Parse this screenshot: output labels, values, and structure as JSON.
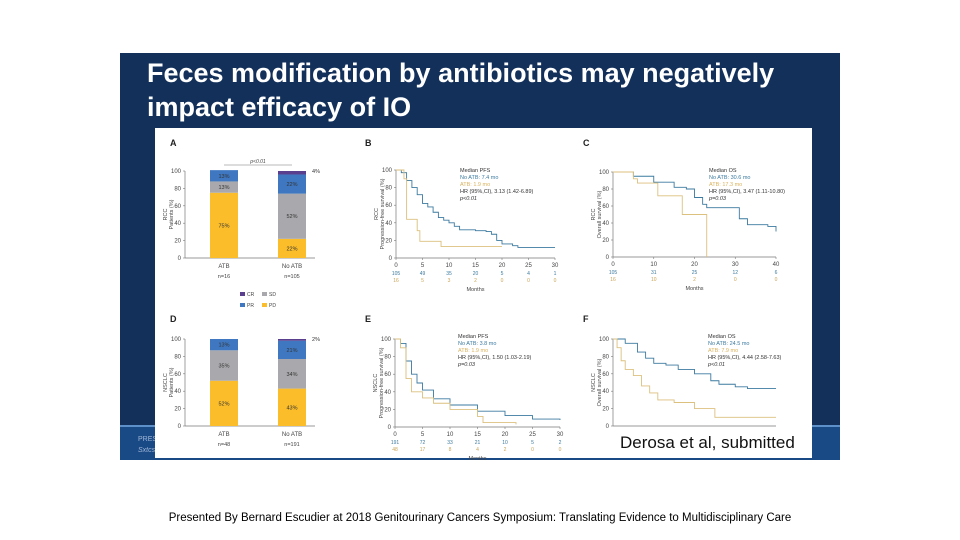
{
  "slide": {
    "title": "Feces modification by antibiotics may negatively impact efficacy of IO",
    "partial_footer_lines": [
      "PRESE",
      "Sxtcs"
    ],
    "citation": "Derosa et al, submitted",
    "caption": "Presented By Bernard Escudier at 2018 Genitourinary Cancers Symposium: Translating Evidence to Multidisciplinary Care"
  },
  "colors": {
    "slide_bg": "#13305a",
    "band": "#1a4a86",
    "CR": "#5b3f8f",
    "PR": "#3f78c1",
    "SD": "#a9a9ad",
    "PD": "#fbbd2a",
    "no_atb": "#3c7aa0",
    "atb": "#dcc07e"
  },
  "legend_A": [
    "CR",
    "SD",
    "PR",
    "PD"
  ],
  "chart_data": [
    {
      "panel": "A",
      "type": "bar",
      "stacked": true,
      "ylabel": "RCC\nPatients (%)",
      "ylim": [
        0,
        100
      ],
      "yticks": [
        "0",
        "20",
        "40",
        "60",
        "80",
        "100"
      ],
      "categories": [
        "ATB",
        "No ATB"
      ],
      "category_n": [
        "n=16",
        "n=105"
      ],
      "pvalue": "p<0.01",
      "series": [
        {
          "name": "PD",
          "values": [
            75,
            22
          ],
          "labels": [
            "75%",
            "22%"
          ]
        },
        {
          "name": "SD",
          "values": [
            13,
            52
          ],
          "labels": [
            "13%",
            "52%"
          ]
        },
        {
          "name": "PR",
          "values": [
            13,
            22
          ],
          "labels": [
            "13%",
            "22%"
          ]
        },
        {
          "name": "CR",
          "values": [
            0,
            4
          ],
          "labels": [
            "",
            "4%"
          ]
        }
      ]
    },
    {
      "panel": "B",
      "type": "line",
      "ylabel": "RCC\nProgression-free survival (%)",
      "xlabel": "Months",
      "xlim": [
        0,
        30
      ],
      "ylim": [
        0,
        100
      ],
      "xticks": [
        "0",
        "5",
        "10",
        "15",
        "20",
        "25",
        "30"
      ],
      "yticks": [
        "0",
        "20",
        "40",
        "60",
        "80",
        "100"
      ],
      "legend": [
        "Median PFS",
        "No ATB: 7.4 mo",
        "ATB: 1.9 mo",
        "HR (95%,CI), 3.13 (1.42-6.89)",
        "p<0.01"
      ],
      "at_risk": {
        "no_atb": [
          "105",
          "49",
          "35",
          "20",
          "5",
          "4",
          "1"
        ],
        "atb": [
          "16",
          "5",
          "3",
          "2",
          "0",
          "0",
          "0"
        ]
      },
      "series": [
        {
          "name": "No ATB",
          "points": [
            [
              0,
              100
            ],
            [
              1,
              97
            ],
            [
              2,
              88
            ],
            [
              3,
              80
            ],
            [
              4,
              72
            ],
            [
              5,
              62
            ],
            [
              6,
              58
            ],
            [
              7,
              52
            ],
            [
              8,
              46
            ],
            [
              9,
              43
            ],
            [
              10,
              40
            ],
            [
              11,
              36
            ],
            [
              12,
              32
            ],
            [
              15,
              31
            ],
            [
              17,
              30
            ],
            [
              18,
              27
            ],
            [
              19,
              20
            ],
            [
              20,
              16
            ],
            [
              22,
              14
            ],
            [
              23,
              12
            ],
            [
              30,
              12
            ]
          ]
        },
        {
          "name": "ATB",
          "points": [
            [
              0,
              100
            ],
            [
              1.5,
              90
            ],
            [
              2,
              44
            ],
            [
              4,
              44
            ],
            [
              4,
              31
            ],
            [
              4.5,
              31
            ],
            [
              4.5,
              19
            ],
            [
              8.5,
              19
            ],
            [
              8.5,
              13
            ],
            [
              20,
              13
            ]
          ]
        }
      ]
    },
    {
      "panel": "C",
      "type": "line",
      "ylabel": "RCC\nOverall survival (%)",
      "xlabel": "Months",
      "xlim": [
        0,
        40
      ],
      "ylim": [
        0,
        100
      ],
      "xticks": [
        "0",
        "10",
        "20",
        "30",
        "40"
      ],
      "yticks": [
        "0",
        "20",
        "40",
        "60",
        "80",
        "100"
      ],
      "legend": [
        "Median OS",
        "No ATB: 30.6 mo",
        "ATB: 17.3 mo",
        "HR (95%,CI), 3.47 (1.11-10.80)",
        "p=0.03"
      ],
      "at_risk": {
        "no_atb": [
          "105",
          "31",
          "25",
          "12",
          "6"
        ],
        "atb": [
          "16",
          "10",
          "2",
          "0",
          "0"
        ]
      },
      "series": [
        {
          "name": "No ATB",
          "points": [
            [
              0,
              100
            ],
            [
              5,
              95
            ],
            [
              10,
              88
            ],
            [
              15,
              82
            ],
            [
              18,
              80
            ],
            [
              20,
              70
            ],
            [
              22,
              62
            ],
            [
              23,
              58
            ],
            [
              30,
              58
            ],
            [
              31,
              45
            ],
            [
              33,
              38
            ],
            [
              38,
              36
            ],
            [
              40,
              30
            ]
          ]
        },
        {
          "name": "ATB",
          "points": [
            [
              0,
              100
            ],
            [
              3,
              100
            ],
            [
              5,
              92
            ],
            [
              6,
              87
            ],
            [
              10,
              87
            ],
            [
              11,
              72
            ],
            [
              17,
              72
            ],
            [
              17,
              50
            ],
            [
              23,
              50
            ],
            [
              23,
              0
            ]
          ]
        }
      ]
    },
    {
      "panel": "D",
      "type": "bar",
      "stacked": true,
      "ylabel": "NSCLC\nPatients (%)",
      "ylim": [
        0,
        100
      ],
      "yticks": [
        "0",
        "20",
        "40",
        "60",
        "80",
        "100"
      ],
      "categories": [
        "ATB",
        "No ATB"
      ],
      "category_n": [
        "n=48",
        "n=191"
      ],
      "series": [
        {
          "name": "PD",
          "values": [
            52,
            43
          ],
          "labels": [
            "52%",
            "43%"
          ]
        },
        {
          "name": "SD",
          "values": [
            35,
            34
          ],
          "labels": [
            "35%",
            "34%"
          ]
        },
        {
          "name": "PR",
          "values": [
            13,
            21
          ],
          "labels": [
            "13%",
            "21%"
          ]
        },
        {
          "name": "CR",
          "values": [
            0,
            2
          ],
          "labels": [
            "",
            "2%"
          ]
        }
      ]
    },
    {
      "panel": "E",
      "type": "line",
      "ylabel": "NSCLC\nProgression-free survival (%)",
      "xlabel": "Months",
      "xlim": [
        0,
        30
      ],
      "ylim": [
        0,
        100
      ],
      "xticks": [
        "0",
        "5",
        "10",
        "15",
        "20",
        "25",
        "30"
      ],
      "yticks": [
        "0",
        "20",
        "40",
        "60",
        "80",
        "100"
      ],
      "legend": [
        "Median PFS",
        "No ATB: 3.8 mo",
        "ATB: 1.9 mo",
        "HR (95%,CI), 1.50 (1.03-2.19)",
        "p=0.03"
      ],
      "at_risk": {
        "no_atb": [
          "191",
          "72",
          "33",
          "21",
          "10",
          "5",
          "2"
        ],
        "atb": [
          "48",
          "17",
          "8",
          "4",
          "2",
          "0",
          "0"
        ]
      },
      "series": [
        {
          "name": "No ATB",
          "points": [
            [
              0,
              100
            ],
            [
              1,
              95
            ],
            [
              2,
              75
            ],
            [
              3,
              60
            ],
            [
              4,
              50
            ],
            [
              5,
              42
            ],
            [
              7,
              32
            ],
            [
              10,
              25
            ],
            [
              15,
              18
            ],
            [
              20,
              13
            ],
            [
              25,
              9
            ],
            [
              30,
              8
            ]
          ]
        },
        {
          "name": "ATB",
          "points": [
            [
              0,
              100
            ],
            [
              1,
              90
            ],
            [
              2,
              55
            ],
            [
              3,
              40
            ],
            [
              5,
              33
            ],
            [
              7,
              27
            ],
            [
              10,
              20
            ],
            [
              15,
              12
            ],
            [
              16,
              5
            ],
            [
              22,
              3
            ]
          ]
        }
      ]
    },
    {
      "panel": "F",
      "type": "line",
      "ylabel": "NSCLC\nOverall survival (%)",
      "ylim": [
        0,
        100
      ],
      "xlim": [
        0,
        40
      ],
      "yticks": [
        "0",
        "20",
        "40",
        "60",
        "80",
        "100"
      ],
      "legend": [
        "Median OS",
        "No ATB: 24.5 mo",
        "ATB: 7.9 mo",
        "HR (95%,CI), 4.44 (2.58-7.63)",
        "p<0.01"
      ],
      "series": [
        {
          "name": "No ATB",
          "points": [
            [
              0,
              100
            ],
            [
              3,
              95
            ],
            [
              6,
              85
            ],
            [
              8,
              78
            ],
            [
              10,
              72
            ],
            [
              13,
              70
            ],
            [
              16,
              65
            ],
            [
              20,
              60
            ],
            [
              24,
              52
            ],
            [
              26,
              48
            ],
            [
              30,
              45
            ],
            [
              33,
              45
            ],
            [
              33,
              43
            ],
            [
              40,
              43
            ]
          ]
        },
        {
          "name": "ATB",
          "points": [
            [
              0,
              100
            ],
            [
              1,
              90
            ],
            [
              2,
              75
            ],
            [
              3,
              65
            ],
            [
              5,
              58
            ],
            [
              7,
              46
            ],
            [
              9,
              38
            ],
            [
              11,
              30
            ],
            [
              15,
              29
            ],
            [
              15,
              27
            ],
            [
              20,
              27
            ],
            [
              20,
              20
            ],
            [
              25,
              20
            ],
            [
              25,
              10
            ],
            [
              40,
              10
            ]
          ]
        }
      ]
    }
  ]
}
